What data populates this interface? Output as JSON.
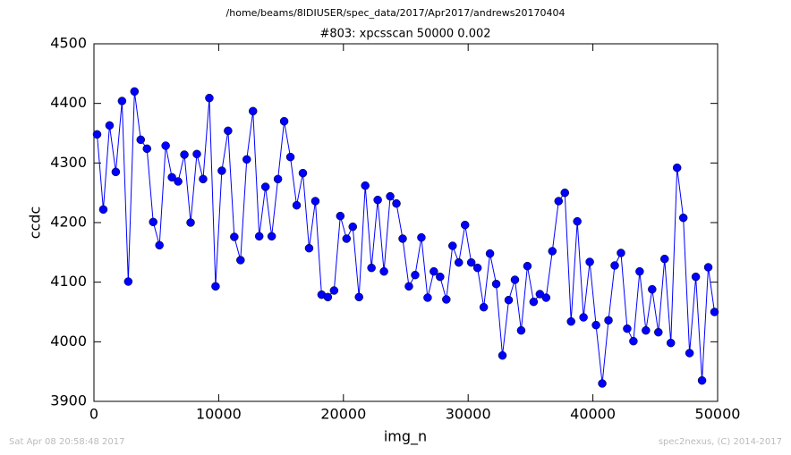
{
  "chart_data": {
    "type": "line",
    "suptitle": "/home/beams/8IDIUSER/spec_data/2017/Apr2017/andrews20170404",
    "title": "#803: xpcsscan 50000 0.002",
    "x_label": "img_n",
    "y_label": "ccdc",
    "footer_left": "Sat Apr 08 20:58:48 2017",
    "footer_right": "spec2nexus, (C) 2014-2017",
    "x": [
      250,
      750,
      1250,
      1750,
      2250,
      2750,
      3250,
      3750,
      4250,
      4750,
      5250,
      5750,
      6250,
      6750,
      7250,
      7750,
      8250,
      8750,
      9250,
      9750,
      10250,
      10750,
      11250,
      11750,
      12250,
      12750,
      13250,
      13750,
      14250,
      14750,
      15250,
      15750,
      16250,
      16750,
      17250,
      17750,
      18250,
      18750,
      19250,
      19750,
      20250,
      20750,
      21250,
      21750,
      22250,
      22750,
      23250,
      23750,
      24250,
      24750,
      25250,
      25750,
      26250,
      26750,
      27250,
      27750,
      28250,
      28750,
      29250,
      29750,
      30250,
      30750,
      31250,
      31750,
      32250,
      32750,
      33250,
      33750,
      34250,
      34750,
      35250,
      35750,
      36250,
      36750,
      37250,
      37750,
      38250,
      38750,
      39250,
      39750,
      40250,
      40750,
      41250,
      41750,
      42250,
      42750,
      43250,
      43750,
      44250,
      44750,
      45250,
      45750,
      46250,
      46750,
      47250,
      47750,
      48250,
      48750,
      49250,
      49750
    ],
    "series": [
      {
        "name": "ccdc",
        "color": "#0000ff",
        "values": [
          4348,
          4222,
          4363,
          4285,
          4404,
          4101,
          4420,
          4339,
          4324,
          4201,
          4162,
          4329,
          4276,
          4269,
          4314,
          4200,
          4315,
          4273,
          4409,
          4093,
          4287,
          4354,
          4176,
          4137,
          4306,
          4387,
          4177,
          4260,
          4177,
          4273,
          4370,
          4310,
          4229,
          4283,
          4157,
          4236,
          4079,
          4075,
          4086,
          4211,
          4173,
          4193,
          4075,
          4262,
          4124,
          4238,
          4118,
          4244,
          4232,
          4173,
          4093,
          4112,
          4175,
          4074,
          4118,
          4109,
          4071,
          4161,
          4133,
          4196,
          4133,
          4124,
          4058,
          4148,
          4097,
          3977,
          4070,
          4104,
          4019,
          4127,
          4067,
          4080,
          4074,
          4152,
          4236,
          4250,
          4034,
          4202,
          4041,
          4134,
          4028,
          3930,
          4036,
          4128,
          4149,
          4022,
          4001,
          4118,
          4019,
          4088,
          4016,
          4139,
          3998,
          4292,
          4208,
          3981,
          4109,
          3935,
          4125,
          4050
        ]
      }
    ],
    "xlim": [
      0,
      50000
    ],
    "xticks": [
      0,
      10000,
      20000,
      30000,
      40000,
      50000
    ],
    "ylim": [
      3900,
      4500
    ],
    "yticks": [
      3900,
      4000,
      4100,
      4200,
      4300,
      4400,
      4500
    ],
    "grid": false
  }
}
